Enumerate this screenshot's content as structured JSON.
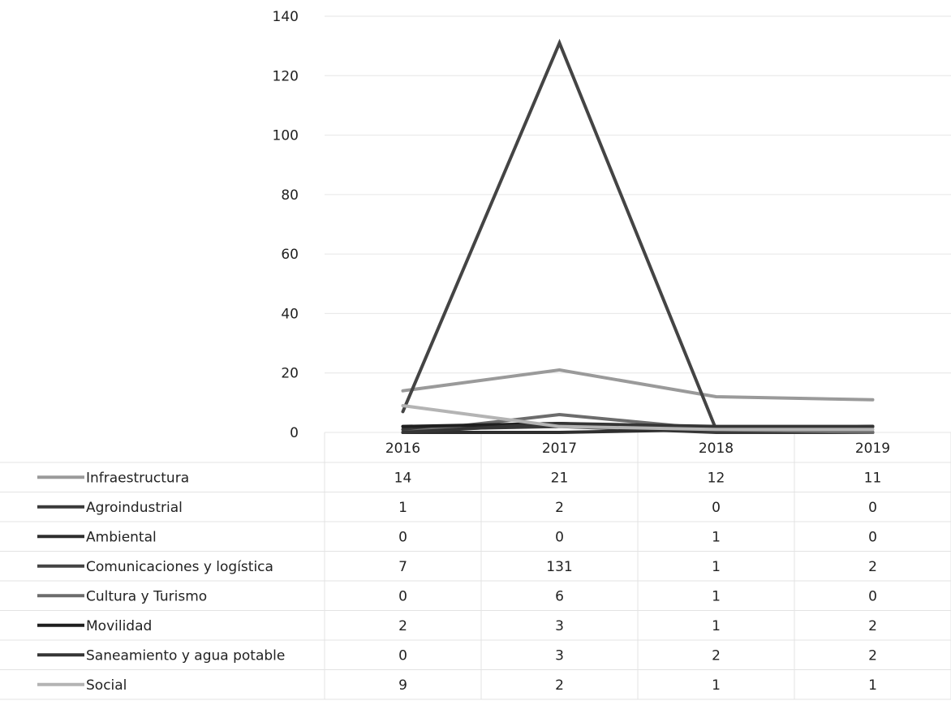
{
  "chart_data": {
    "type": "line",
    "title": "",
    "xlabel": "",
    "ylabel": "",
    "categories": [
      "2016",
      "2017",
      "2018",
      "2019"
    ],
    "ylim": [
      0,
      140
    ],
    "yticks": [
      0,
      20,
      40,
      60,
      80,
      100,
      120,
      140
    ],
    "grid": true,
    "legend": "data-table-below",
    "series": [
      {
        "name": "Infraestructura",
        "values": [
          14,
          21,
          12,
          11
        ],
        "color": "#9a9a9a"
      },
      {
        "name": "Agroindustrial",
        "values": [
          1,
          2,
          0,
          0
        ],
        "color": "#3a3a3a"
      },
      {
        "name": "Ambiental",
        "values": [
          0,
          0,
          1,
          0
        ],
        "color": "#2e2e2e"
      },
      {
        "name": "Comunicaciones y logística",
        "values": [
          7,
          131,
          1,
          2
        ],
        "color": "#444444"
      },
      {
        "name": "Cultura y Turismo",
        "values": [
          0,
          6,
          1,
          0
        ],
        "color": "#6c6c6c"
      },
      {
        "name": "Movilidad",
        "values": [
          2,
          3,
          1,
          2
        ],
        "color": "#1f1f1f"
      },
      {
        "name": "Saneamiento y agua potable",
        "values": [
          0,
          3,
          2,
          2
        ],
        "color": "#353535"
      },
      {
        "name": "Social",
        "values": [
          9,
          2,
          1,
          1
        ],
        "color": "#b4b4b4"
      }
    ]
  }
}
